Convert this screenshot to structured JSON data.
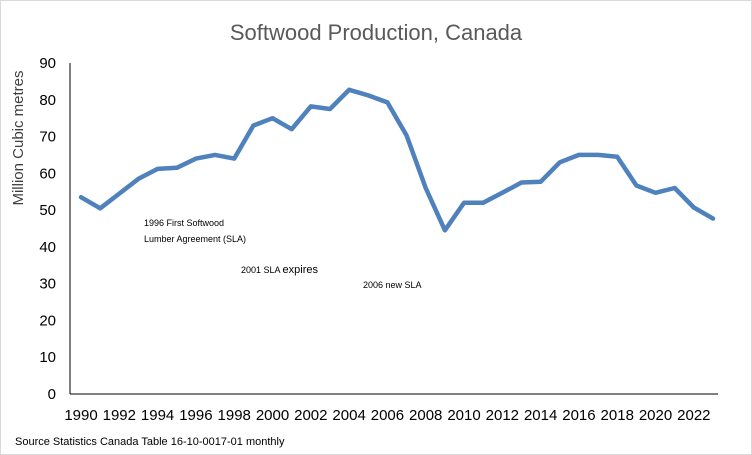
{
  "chart_data": {
    "type": "line",
    "title": "Softwood Production,  Canada",
    "ylabel": "Million Cubic metres",
    "xlabel": "",
    "ylim": [
      0,
      90
    ],
    "yticks": [
      0,
      10,
      20,
      30,
      40,
      50,
      60,
      70,
      80,
      90
    ],
    "xticks": [
      1990,
      1992,
      1994,
      1996,
      1998,
      2000,
      2002,
      2004,
      2006,
      2008,
      2010,
      2012,
      2014,
      2016,
      2018,
      2020,
      2022
    ],
    "xlim": [
      1990,
      2023
    ],
    "grid": false,
    "legend": "none",
    "series": [
      {
        "name": "Softwood production",
        "color": "#4f81bd",
        "x": [
          1990,
          1991,
          1992,
          1993,
          1994,
          1995,
          1996,
          1997,
          1998,
          1999,
          2000,
          2001,
          2002,
          2003,
          2004,
          2005,
          2006,
          2007,
          2008,
          2009,
          2010,
          2011,
          2012,
          2013,
          2014,
          2015,
          2016,
          2017,
          2018,
          2019,
          2020,
          2021,
          2022,
          2023
        ],
        "values": [
          53.5,
          50.5,
          54.5,
          58.5,
          61.2,
          61.5,
          64.0,
          65.0,
          64.0,
          73.0,
          75.0,
          72.0,
          78.2,
          77.5,
          82.7,
          81.2,
          79.3,
          70.3,
          56.0,
          44.5,
          52.0,
          52.0,
          54.7,
          57.5,
          57.7,
          63.0,
          65.0,
          65.0,
          64.5,
          56.7,
          54.7,
          56.0,
          50.7,
          47.7
        ]
      }
    ],
    "annotations": [
      {
        "lines": [
          "1996 First Softwood",
          "Lumber  Agreement  (SLA)"
        ]
      },
      {
        "text_a": "2001 SLA ",
        "text_b": "expires"
      },
      {
        "text": "2006 new SLA"
      }
    ],
    "source": "Source Statistics Canada Table 16-10-0017-01 monthly"
  }
}
